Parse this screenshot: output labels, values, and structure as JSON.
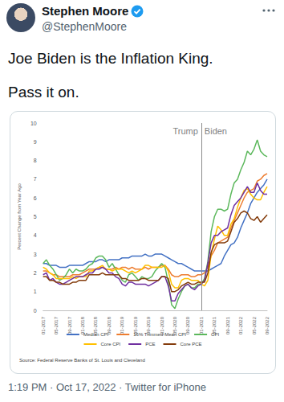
{
  "tweet": {
    "author": "Stephen Moore",
    "handle": "@StephenMoore",
    "text": [
      "Joe Biden is the Inflation King.",
      "Pass it on."
    ],
    "footer": "1:19 PM · Oct 17, 2022 · Twitter for iPhone"
  },
  "chart_data": {
    "type": "line",
    "y_label": "Percent Change from Year Ago",
    "source": "Source: Federal Reserve Banks of St. Louis and Cleveland",
    "categories": [
      "01-2017",
      null,
      null,
      null,
      "05-2017",
      null,
      null,
      null,
      "09-2017",
      null,
      null,
      null,
      "01-2018",
      null,
      null,
      null,
      "05-2018",
      null,
      null,
      null,
      "09-2018",
      null,
      null,
      null,
      "01-2019",
      null,
      null,
      null,
      "05-2019",
      null,
      null,
      null,
      "09-2019",
      null,
      null,
      null,
      "01-2020",
      null,
      null,
      null,
      "05-2020",
      null,
      null,
      null,
      "09-2020",
      null,
      null,
      null,
      "01-2021",
      null,
      null,
      null,
      "05-2021",
      null,
      null,
      null,
      "09-2021",
      null,
      null,
      null,
      "01-2022",
      null,
      null,
      null,
      "05-2022",
      null,
      null,
      null,
      "09-2022"
    ],
    "series": [
      {
        "name": "Median CPI",
        "color": "#4472c4",
        "values": [
          2.5,
          2.5,
          2.4,
          2.4,
          2.4,
          2.3,
          2.3,
          2.3,
          2.4,
          2.4,
          2.4,
          2.4,
          2.4,
          2.5,
          2.6,
          2.6,
          2.6,
          2.7,
          2.7,
          2.6,
          2.7,
          2.7,
          2.7,
          2.7,
          2.8,
          2.8,
          2.8,
          2.9,
          2.9,
          2.9,
          2.9,
          3.0,
          2.9,
          2.9,
          3.0,
          3.0,
          3.0,
          2.9,
          2.8,
          2.7,
          2.6,
          2.5,
          2.5,
          2.4,
          2.3,
          2.2,
          2.1,
          2.1,
          2.1,
          2.1,
          2.1,
          2.2,
          2.3,
          2.4,
          2.5,
          2.9,
          3.2,
          3.5,
          3.6,
          3.9,
          4.4,
          4.8,
          5.2,
          5.7,
          6.0,
          6.3,
          6.5,
          6.7,
          7.0
        ]
      },
      {
        "name": "16% Trimmed-Mean CPI",
        "color": "#ed7d31",
        "values": [
          2.1,
          2.1,
          2.0,
          1.9,
          1.9,
          1.8,
          1.8,
          1.8,
          1.8,
          1.9,
          1.9,
          1.9,
          2.0,
          2.1,
          2.2,
          2.2,
          2.2,
          2.3,
          2.3,
          2.2,
          2.2,
          2.2,
          2.3,
          2.2,
          2.3,
          2.3,
          2.2,
          2.3,
          2.2,
          2.2,
          2.2,
          2.3,
          2.2,
          2.3,
          2.3,
          2.3,
          2.4,
          2.4,
          2.2,
          1.9,
          1.8,
          1.8,
          1.9,
          1.9,
          1.9,
          1.8,
          1.8,
          1.9,
          1.9,
          2.0,
          2.3,
          2.9,
          3.2,
          3.6,
          3.7,
          3.8,
          3.9,
          4.4,
          4.8,
          5.2,
          5.6,
          6.0,
          6.3,
          6.4,
          6.5,
          6.9,
          7.0,
          7.2,
          7.3
        ]
      },
      {
        "name": "CPI",
        "color": "#5cb85c",
        "values": [
          2.5,
          2.7,
          2.4,
          2.2,
          1.9,
          1.6,
          1.7,
          1.9,
          2.2,
          2.0,
          2.2,
          2.1,
          2.1,
          2.2,
          2.4,
          2.5,
          2.8,
          2.9,
          2.9,
          2.7,
          2.3,
          2.5,
          2.2,
          1.9,
          1.6,
          1.5,
          1.9,
          2.0,
          1.8,
          1.6,
          1.8,
          1.7,
          1.7,
          1.8,
          2.1,
          2.3,
          2.5,
          2.3,
          1.5,
          0.3,
          0.1,
          0.6,
          1.0,
          1.3,
          1.4,
          1.2,
          1.2,
          1.4,
          1.4,
          1.7,
          2.6,
          4.2,
          5.0,
          5.4,
          5.4,
          5.3,
          5.4,
          6.2,
          6.8,
          7.0,
          7.5,
          7.9,
          8.5,
          8.3,
          8.6,
          9.1,
          8.5,
          8.3,
          8.2
        ]
      },
      {
        "name": "Core CPI",
        "color": "#ffc000",
        "values": [
          2.3,
          2.2,
          2.0,
          1.9,
          1.7,
          1.7,
          1.7,
          1.7,
          1.7,
          1.8,
          1.7,
          1.8,
          1.8,
          1.8,
          2.1,
          2.1,
          2.2,
          2.3,
          2.4,
          2.2,
          2.2,
          2.1,
          2.2,
          2.2,
          2.2,
          2.1,
          2.0,
          2.1,
          2.0,
          2.1,
          2.2,
          2.4,
          2.4,
          2.3,
          2.3,
          2.3,
          2.3,
          2.4,
          2.1,
          1.4,
          1.2,
          1.2,
          1.6,
          1.7,
          1.7,
          1.6,
          1.6,
          1.6,
          1.4,
          1.3,
          1.6,
          3.0,
          3.8,
          4.5,
          4.3,
          4.0,
          4.0,
          4.6,
          4.9,
          5.5,
          6.0,
          6.4,
          6.5,
          6.2,
          6.0,
          5.9,
          5.9,
          6.3,
          6.6
        ]
      },
      {
        "name": "PCE",
        "color": "#7030a0",
        "values": [
          1.9,
          2.0,
          1.6,
          1.7,
          1.5,
          1.4,
          1.4,
          1.5,
          1.6,
          1.7,
          1.8,
          1.8,
          1.8,
          1.9,
          2.0,
          2.0,
          2.2,
          2.2,
          2.3,
          2.2,
          2.0,
          2.0,
          1.8,
          1.7,
          1.4,
          1.3,
          1.5,
          1.5,
          1.4,
          1.4,
          1.4,
          1.4,
          1.3,
          1.4,
          1.5,
          1.6,
          1.8,
          1.8,
          1.3,
          0.5,
          0.5,
          0.9,
          1.1,
          1.3,
          1.4,
          1.2,
          1.1,
          1.3,
          1.4,
          1.6,
          2.5,
          3.6,
          4.0,
          4.0,
          4.2,
          4.3,
          4.4,
          5.1,
          5.6,
          5.8,
          6.0,
          6.3,
          6.6,
          6.3,
          6.3,
          6.8,
          6.4,
          6.2,
          6.2
        ]
      },
      {
        "name": "Core PCE",
        "color": "#843c0c",
        "values": [
          1.8,
          1.8,
          1.6,
          1.6,
          1.5,
          1.5,
          1.4,
          1.4,
          1.4,
          1.5,
          1.5,
          1.6,
          1.6,
          1.6,
          1.9,
          1.9,
          1.9,
          1.9,
          2.0,
          1.9,
          1.9,
          1.9,
          1.9,
          1.9,
          1.7,
          1.7,
          1.6,
          1.6,
          1.6,
          1.6,
          1.7,
          1.7,
          1.6,
          1.6,
          1.6,
          1.6,
          1.8,
          1.8,
          1.7,
          1.0,
          1.0,
          1.1,
          1.3,
          1.4,
          1.5,
          1.4,
          1.4,
          1.5,
          1.5,
          1.5,
          2.0,
          3.1,
          3.5,
          3.6,
          3.6,
          3.6,
          3.7,
          4.2,
          4.7,
          4.9,
          5.2,
          5.3,
          5.2,
          4.9,
          4.8,
          5.0,
          4.7,
          4.9,
          5.1
        ]
      }
    ],
    "annotations": [
      {
        "text": "Trump",
        "x": "01-2021",
        "side": "left"
      },
      {
        "text": "Biden",
        "x": "01-2021",
        "side": "right"
      }
    ],
    "ylim": [
      0,
      10
    ],
    "yticks": [
      0,
      1,
      2,
      3,
      4,
      5,
      6,
      7,
      8,
      9,
      10
    ],
    "grid": false,
    "legend": "bottom"
  }
}
